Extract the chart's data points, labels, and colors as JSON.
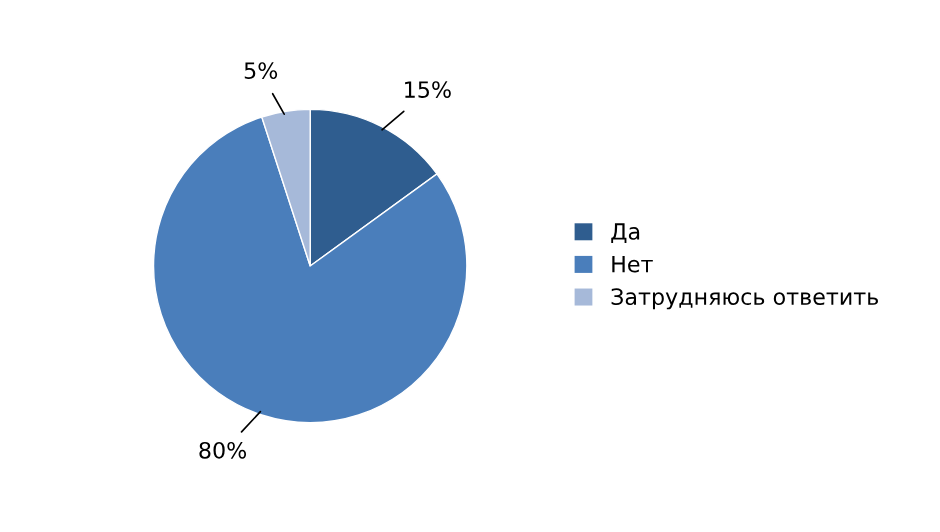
{
  "chart_data": {
    "type": "pie",
    "categories": [
      "Да",
      "Нет",
      "Затрудняюсь ответить"
    ],
    "values": [
      15,
      80,
      5
    ],
    "colors": [
      "#2f5d8f",
      "#4a7ebb",
      "#a6b9d9"
    ],
    "value_labels": [
      "15%",
      "80%",
      "5%"
    ],
    "legend": "right"
  }
}
